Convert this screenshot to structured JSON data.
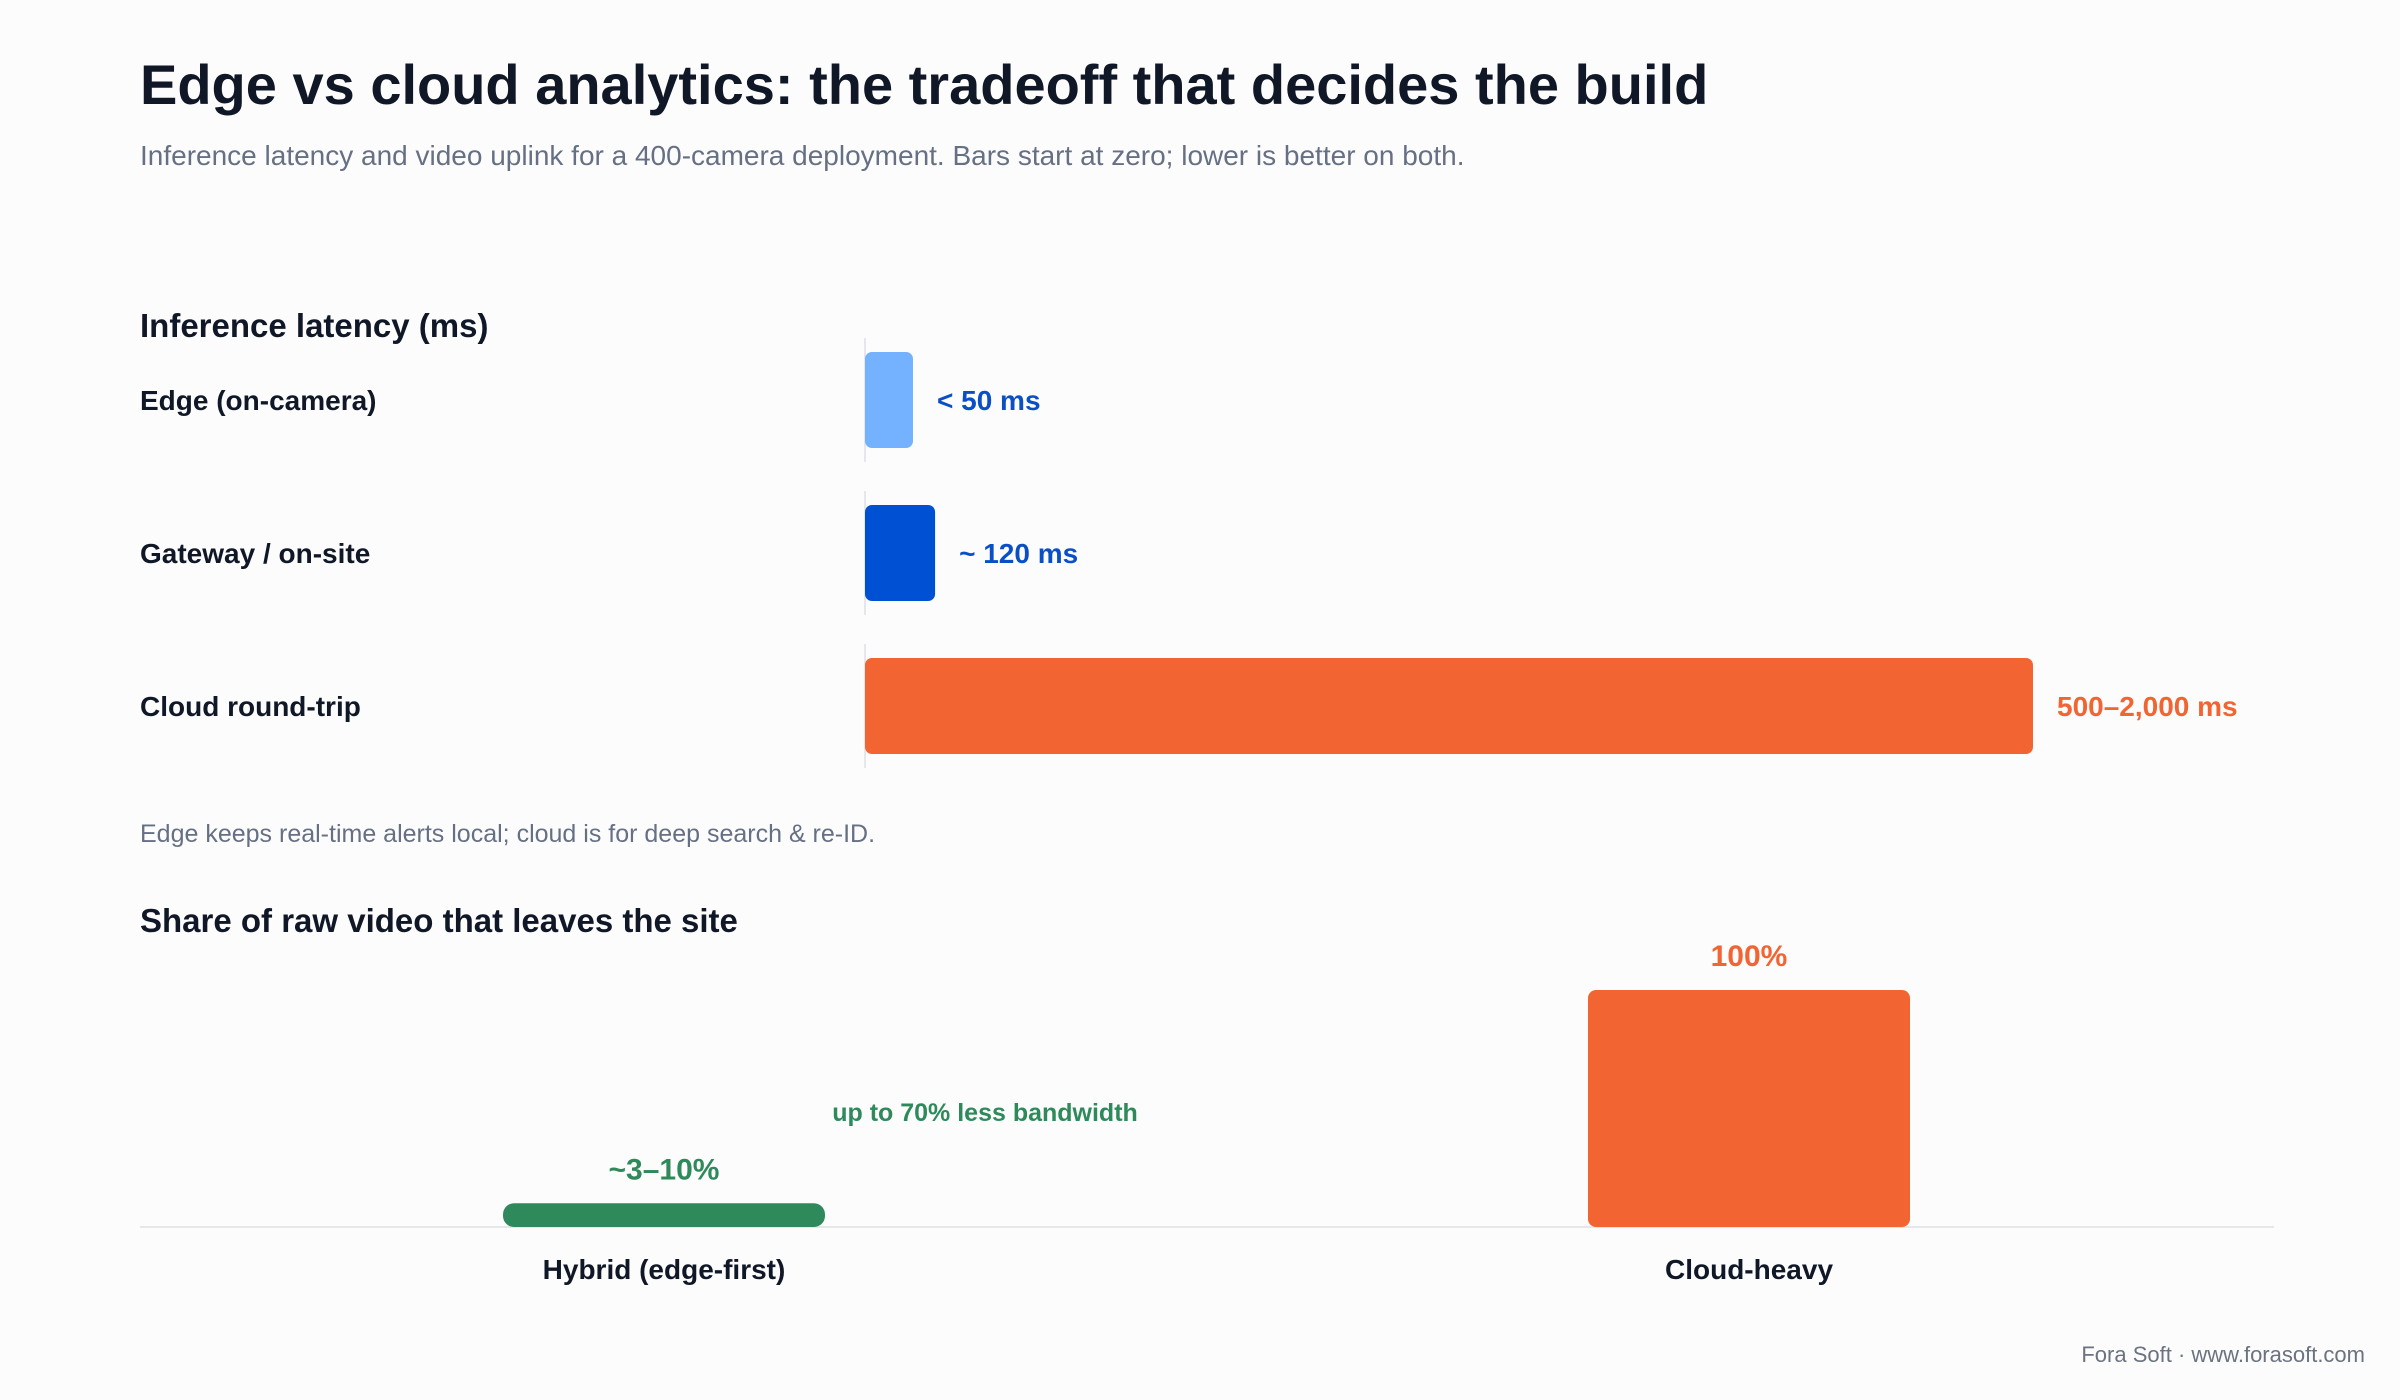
{
  "title": "Edge vs cloud analytics: the tradeoff that decides the build",
  "subtitle": "Inference latency and video uplink for a 400-camera deployment. Bars start at zero; lower is better on both.",
  "latency_section": {
    "title": "Inference latency (ms)",
    "note": "Edge keeps real-time alerts local; cloud is for deep search & re-ID."
  },
  "share_section": {
    "title": "Share of raw video that leaves the site",
    "annotation": "up to 70% less bandwidth"
  },
  "footer": "Fora Soft · www.forasoft.com",
  "colors": {
    "edge_light_blue": "#74b1ff",
    "gateway_blue": "#0050d4",
    "cloud_orange": "#f26532",
    "hybrid_green": "#2f8a5b",
    "label_blue": "#0b4fc7"
  },
  "chart_data": [
    {
      "type": "bar",
      "orientation": "horizontal",
      "title": "Inference latency (ms)",
      "categories": [
        "Edge (on-camera)",
        "Gateway / on-site",
        "Cloud round-trip"
      ],
      "values": [
        50,
        120,
        2000
      ],
      "value_ranges": [
        [
          0,
          50
        ],
        [
          120,
          120
        ],
        [
          500,
          2000
        ]
      ],
      "data_labels": [
        "< 50 ms",
        "~ 120 ms",
        "500–2,000 ms"
      ],
      "colors": [
        "#74b1ff",
        "#0050d4",
        "#f26532"
      ],
      "label_colors": [
        "#0b4fc7",
        "#0b4fc7",
        "#f26532"
      ],
      "xlim": [
        0,
        2000
      ],
      "grid": false
    },
    {
      "type": "bar",
      "orientation": "vertical",
      "title": "Share of raw video that leaves the site",
      "categories": [
        "Hybrid (edge-first)",
        "Cloud-heavy"
      ],
      "values": [
        10,
        100
      ],
      "value_ranges": [
        [
          3,
          10
        ],
        [
          100,
          100
        ]
      ],
      "data_labels": [
        "~3–10%",
        "100%"
      ],
      "colors": [
        "#2f8a5b",
        "#f26532"
      ],
      "ylim": [
        0,
        100
      ],
      "annotation": "up to 70% less bandwidth",
      "grid": false
    }
  ]
}
